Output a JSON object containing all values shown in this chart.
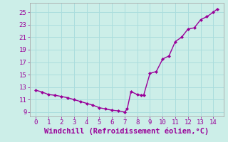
{
  "x": [
    0,
    0.5,
    1,
    1.5,
    2,
    2.5,
    3,
    3.5,
    4,
    4.5,
    5,
    5.5,
    6,
    6.5,
    7,
    7.2,
    7.5,
    8.0,
    8.3,
    8.5,
    9.0,
    9.5,
    10.0,
    10.5,
    11.0,
    11.5,
    12.0,
    12.5,
    13.0,
    13.5,
    14.0,
    14.3
  ],
  "y": [
    12.5,
    12.2,
    11.8,
    11.7,
    11.5,
    11.3,
    11.0,
    10.7,
    10.4,
    10.1,
    9.7,
    9.5,
    9.3,
    9.2,
    9.0,
    9.5,
    12.3,
    11.8,
    11.7,
    11.7,
    15.2,
    15.5,
    17.5,
    18.0,
    20.3,
    21.0,
    22.3,
    22.5,
    23.8,
    24.3,
    25.0,
    25.5
  ],
  "line_color": "#990099",
  "marker": "D",
  "markersize": 2.0,
  "bg_color": "#cceee8",
  "grid_color": "#aadddd",
  "xlabel": "Windchill (Refroidissement éolien,°C)",
  "xlabel_color": "#990099",
  "xlabel_fontsize": 7.5,
  "ylabel_ticks": [
    9,
    11,
    13,
    15,
    17,
    19,
    21,
    23,
    25
  ],
  "ytick_labels": [
    "9",
    "11",
    "13",
    "15",
    "17",
    "19",
    "21",
    "23",
    "25"
  ],
  "xtick_vals": [
    0,
    1,
    2,
    3,
    4,
    5,
    6,
    7,
    8,
    9,
    10,
    11,
    12,
    13,
    14
  ],
  "xlim": [
    -0.5,
    14.8
  ],
  "ylim": [
    8.3,
    26.5
  ],
  "tick_color": "#990099",
  "tick_fontsize": 6.5,
  "axis_color": "#aaaaaa",
  "linewidth": 1.0
}
